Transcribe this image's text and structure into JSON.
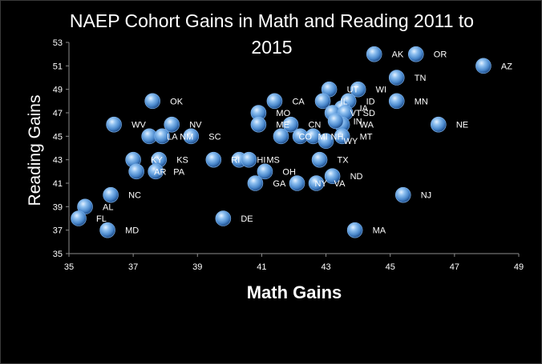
{
  "chart_data": {
    "type": "scatter",
    "title_lines": [
      "NAEP Cohort Gains in Math and Reading 2011 to",
      "2015"
    ],
    "xlabel": "Math Gains",
    "ylabel": "Reading Gains",
    "xlim": [
      35,
      49
    ],
    "ylim": [
      35,
      53
    ],
    "xticks": [
      35,
      37,
      39,
      41,
      43,
      45,
      47,
      49
    ],
    "yticks": [
      35,
      37,
      39,
      41,
      43,
      45,
      47,
      49,
      51,
      53
    ],
    "grid": false,
    "colors": {
      "background": "#000000",
      "marker_light": "#c8e2ff",
      "marker": "#5a9ad8",
      "marker_dark": "#1e4f8c",
      "text": "#ffffff",
      "axis": "#8c8c8c"
    },
    "points": [
      {
        "label": "AK",
        "x": 44.5,
        "y": 52.0
      },
      {
        "label": "OR",
        "x": 45.8,
        "y": 52.0
      },
      {
        "label": "AZ",
        "x": 47.9,
        "y": 51.0
      },
      {
        "label": "TN",
        "x": 45.2,
        "y": 50.0
      },
      {
        "label": "WI",
        "x": 44.0,
        "y": 49.0
      },
      {
        "label": "UT",
        "x": 43.1,
        "y": 49.0
      },
      {
        "label": "MN",
        "x": 45.2,
        "y": 48.0
      },
      {
        "label": "OK",
        "x": 37.6,
        "y": 48.0
      },
      {
        "label": "CA",
        "x": 41.4,
        "y": 48.0
      },
      {
        "label": "ID",
        "x": 43.7,
        "y": 48.0
      },
      {
        "label": "IL",
        "x": 42.9,
        "y": 48.0
      },
      {
        "label": "IA",
        "x": 43.5,
        "y": 47.4
      },
      {
        "label": "MO",
        "x": 40.9,
        "y": 47.0
      },
      {
        "label": "VT",
        "x": 43.2,
        "y": 47.0
      },
      {
        "label": "SD",
        "x": 43.6,
        "y": 47.0
      },
      {
        "label": "NE",
        "x": 46.5,
        "y": 46.0
      },
      {
        "label": "WA",
        "x": 43.5,
        "y": 46.0
      },
      {
        "label": "IN",
        "x": 43.3,
        "y": 46.3
      },
      {
        "label": "WV",
        "x": 36.4,
        "y": 46.0
      },
      {
        "label": "NV",
        "x": 38.2,
        "y": 46.0
      },
      {
        "label": "ME",
        "x": 40.9,
        "y": 46.0
      },
      {
        "label": "CN",
        "x": 41.9,
        "y": 46.0
      },
      {
        "label": "LA",
        "x": 37.5,
        "y": 45.0
      },
      {
        "label": "NM",
        "x": 37.9,
        "y": 45.0
      },
      {
        "label": "SC",
        "x": 38.8,
        "y": 45.0
      },
      {
        "label": "CO",
        "x": 41.6,
        "y": 45.0
      },
      {
        "label": "MI",
        "x": 42.2,
        "y": 45.0
      },
      {
        "label": "NH",
        "x": 42.6,
        "y": 45.0
      },
      {
        "label": "MT",
        "x": 43.5,
        "y": 45.0
      },
      {
        "label": "WY",
        "x": 43.0,
        "y": 44.6
      },
      {
        "label": "RI",
        "x": 39.5,
        "y": 43.0
      },
      {
        "label": "KY",
        "x": 37.0,
        "y": 43.0
      },
      {
        "label": "KS",
        "x": 37.8,
        "y": 43.0
      },
      {
        "label": "HI",
        "x": 40.3,
        "y": 43.0
      },
      {
        "label": "TX",
        "x": 42.8,
        "y": 43.0
      },
      {
        "label": "AR",
        "x": 37.1,
        "y": 42.0
      },
      {
        "label": "PA",
        "x": 37.7,
        "y": 42.0
      },
      {
        "label": "MS",
        "x": 40.6,
        "y": 43.0
      },
      {
        "label": "OH",
        "x": 41.1,
        "y": 42.0
      },
      {
        "label": "ND",
        "x": 43.2,
        "y": 41.6
      },
      {
        "label": "GA",
        "x": 40.8,
        "y": 41.0
      },
      {
        "label": "NY",
        "x": 42.1,
        "y": 41.0
      },
      {
        "label": "VA",
        "x": 42.7,
        "y": 41.0
      },
      {
        "label": "NJ",
        "x": 45.4,
        "y": 40.0
      },
      {
        "label": "NC",
        "x": 36.3,
        "y": 40.0
      },
      {
        "label": "AL",
        "x": 35.5,
        "y": 39.0
      },
      {
        "label": "FL",
        "x": 35.3,
        "y": 38.0
      },
      {
        "label": "DE",
        "x": 39.8,
        "y": 38.0
      },
      {
        "label": "MD",
        "x": 36.2,
        "y": 37.0
      },
      {
        "label": "MA",
        "x": 43.9,
        "y": 37.0
      }
    ]
  }
}
